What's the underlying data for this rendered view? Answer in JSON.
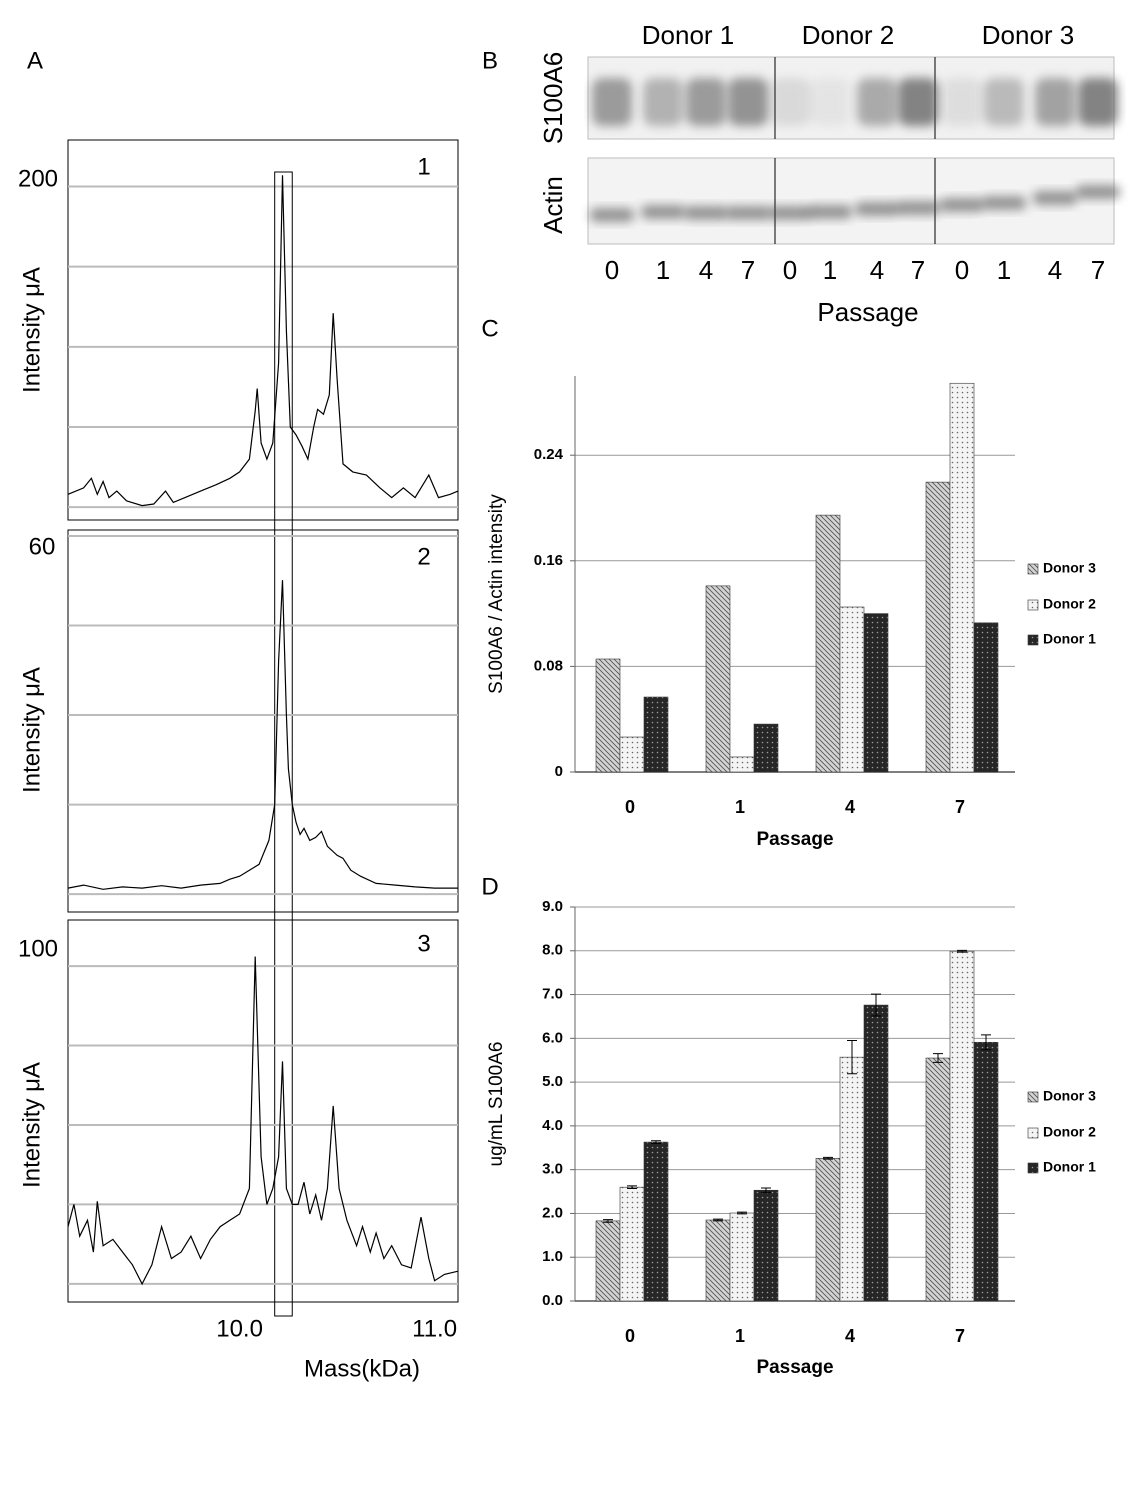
{
  "panel_labels": [
    "A",
    "B",
    "C",
    "D"
  ],
  "blot": {
    "donors": [
      "Donor 1",
      "Donor 2",
      "Donor 3"
    ],
    "rows": [
      "S100A6",
      "Actin"
    ],
    "lanes": [
      "0",
      "1",
      "4",
      "7",
      "0",
      "1",
      "4",
      "7",
      "0",
      "1",
      "4",
      "7"
    ],
    "xlabel": "Passage"
  },
  "chart_data": [
    {
      "type": "line",
      "annotation": "1",
      "ylabel": "Intensity μA",
      "color": "#000000",
      "xlim": [
        9.12,
        11.12
      ],
      "ylim": [
        -8,
        229
      ],
      "yticks": [
        200
      ],
      "ygrid": [
        0,
        50,
        100,
        150
      ],
      "highlight": [
        10.18,
        10.27
      ],
      "x": [
        9.12,
        9.2,
        9.24,
        9.27,
        9.3,
        9.33,
        9.37,
        9.42,
        9.5,
        9.56,
        9.62,
        9.66,
        9.72,
        9.8,
        9.88,
        9.95,
        10.0,
        10.05,
        10.08,
        10.09,
        10.11,
        10.14,
        10.17,
        10.2,
        10.22,
        10.24,
        10.26,
        10.29,
        10.32,
        10.35,
        10.38,
        10.4,
        10.43,
        10.46,
        10.48,
        10.5,
        10.53,
        10.58,
        10.65,
        10.72,
        10.78,
        10.84,
        10.9,
        10.97,
        11.02,
        11.08,
        11.12
      ],
      "values": [
        8,
        12,
        18,
        8,
        16,
        6,
        10,
        4,
        1,
        2,
        10,
        3,
        6,
        10,
        14,
        18,
        22,
        30,
        60,
        74,
        40,
        30,
        40,
        90,
        207,
        110,
        50,
        45,
        38,
        30,
        50,
        61,
        58,
        70,
        121,
        80,
        27,
        22,
        20,
        12,
        6,
        12,
        6,
        20,
        6,
        8,
        10
      ]
    },
    {
      "type": "line",
      "annotation": "2",
      "ylabel": "Intensity μA",
      "color": "#000000",
      "xlim": [
        9.12,
        11.12
      ],
      "ylim": [
        -3,
        61
      ],
      "yticks": [
        60
      ],
      "ygrid": [
        0,
        15,
        30,
        45
      ],
      "x": [
        9.12,
        9.2,
        9.3,
        9.4,
        9.5,
        9.6,
        9.7,
        9.8,
        9.9,
        9.95,
        10.0,
        10.05,
        10.1,
        10.15,
        10.18,
        10.2,
        10.22,
        10.24,
        10.25,
        10.27,
        10.29,
        10.31,
        10.33,
        10.36,
        10.39,
        10.42,
        10.45,
        10.5,
        10.53,
        10.57,
        10.62,
        10.7,
        10.8,
        10.9,
        11.0,
        11.12
      ],
      "values": [
        1,
        1.5,
        0.8,
        1.2,
        1,
        1.4,
        1,
        1.5,
        1.8,
        2.5,
        3,
        4,
        5,
        9,
        15,
        39,
        52.6,
        30,
        21,
        15,
        12,
        10,
        11,
        9,
        9.5,
        10.5,
        8,
        6.5,
        6,
        4,
        3,
        1.8,
        1.5,
        1.2,
        1,
        1
      ]
    },
    {
      "type": "line",
      "annotation": "3",
      "ylabel": "Intensity μA",
      "xlabel": "Mass(kDa)",
      "color": "#000000",
      "xlim": [
        9.12,
        11.12
      ],
      "ylim": [
        -5.7,
        114.5
      ],
      "yticks": [
        100
      ],
      "ygrid": [
        0,
        25,
        50,
        75
      ],
      "xticks": [
        {
          "value": 10,
          "label": "10.0"
        },
        {
          "value": 11,
          "label": "11.0"
        }
      ],
      "x": [
        9.12,
        9.15,
        9.18,
        9.22,
        9.25,
        9.27,
        9.3,
        9.35,
        9.4,
        9.45,
        9.5,
        9.55,
        9.6,
        9.65,
        9.7,
        9.75,
        9.8,
        9.85,
        9.9,
        9.95,
        10.0,
        10.05,
        10.08,
        10.11,
        10.14,
        10.17,
        10.2,
        10.22,
        10.24,
        10.27,
        10.3,
        10.33,
        10.36,
        10.39,
        10.42,
        10.45,
        10.48,
        10.51,
        10.55,
        10.6,
        10.63,
        10.67,
        10.7,
        10.74,
        10.78,
        10.83,
        10.88,
        10.93,
        10.97,
        11.0,
        11.05,
        11.12
      ],
      "values": [
        18,
        25,
        15,
        20,
        10,
        26,
        12,
        14,
        10,
        6,
        0,
        6,
        18,
        8,
        10,
        15,
        8,
        14,
        18,
        20,
        22,
        30,
        103,
        40,
        25,
        30,
        40,
        70,
        30,
        25,
        25,
        32,
        22,
        28,
        20,
        30,
        56,
        30,
        20,
        12,
        18,
        10,
        16,
        8,
        12,
        6,
        5,
        21,
        8,
        1,
        3,
        4
      ]
    },
    {
      "type": "bar",
      "xlabel": "Passage",
      "ylabel": "S100A6  /  Actin  intensity",
      "categories": [
        "0",
        "1",
        "4",
        "7"
      ],
      "ylim": [
        0,
        0.3
      ],
      "yticks": [
        0,
        0.08,
        0.16,
        0.24
      ],
      "grid": true,
      "legend": "right",
      "series": [
        {
          "name": "Donor 3",
          "color": "#d4d4d4",
          "pattern": "hatch",
          "values": [
            0.0856,
            0.141,
            0.1946,
            0.2196
          ]
        },
        {
          "name": "Donor 2",
          "color": "#f4f4f4",
          "pattern": "dots",
          "values": [
            0.0265,
            0.0114,
            0.125,
            0.2945
          ]
        },
        {
          "name": "Donor 1",
          "color": "#262626",
          "pattern": "dots",
          "values": [
            0.0568,
            0.0363,
            0.12,
            0.113
          ]
        }
      ]
    },
    {
      "type": "bar",
      "xlabel": "Passage",
      "ylabel": "ug/mL S100A6",
      "categories": [
        "0",
        "1",
        "4",
        "7"
      ],
      "ylim": [
        0,
        9
      ],
      "yticks": [
        {
          "value": 0,
          "label": "0.0"
        },
        {
          "value": 1,
          "label": "1.0"
        },
        {
          "value": 2,
          "label": "2.0"
        },
        {
          "value": 3,
          "label": "3.0"
        },
        {
          "value": 4,
          "label": "4.0"
        },
        {
          "value": 5,
          "label": "5.0"
        },
        {
          "value": 6,
          "label": "6.0"
        },
        {
          "value": 7,
          "label": "7.0"
        },
        {
          "value": 8,
          "label": "8.0"
        },
        {
          "value": 9,
          "label": "9.0"
        }
      ],
      "grid": true,
      "legend": "right",
      "series": [
        {
          "name": "Donor 3",
          "color": "#d4d4d4",
          "pattern": "hatch",
          "values": [
            1.83,
            1.85,
            3.26,
            5.55
          ],
          "errors": [
            0.03,
            0.02,
            0.02,
            0.1
          ]
        },
        {
          "name": "Donor 2",
          "color": "#f4f4f4",
          "pattern": "dots",
          "values": [
            2.6,
            2.01,
            5.57,
            7.99
          ],
          "errors": [
            0.03,
            0.02,
            0.38,
            0.02
          ]
        },
        {
          "name": "Donor 1",
          "color": "#262626",
          "pattern": "dots",
          "values": [
            3.63,
            2.53,
            6.76,
            5.91
          ],
          "errors": [
            0.03,
            0.05,
            0.25,
            0.17
          ]
        }
      ]
    }
  ]
}
